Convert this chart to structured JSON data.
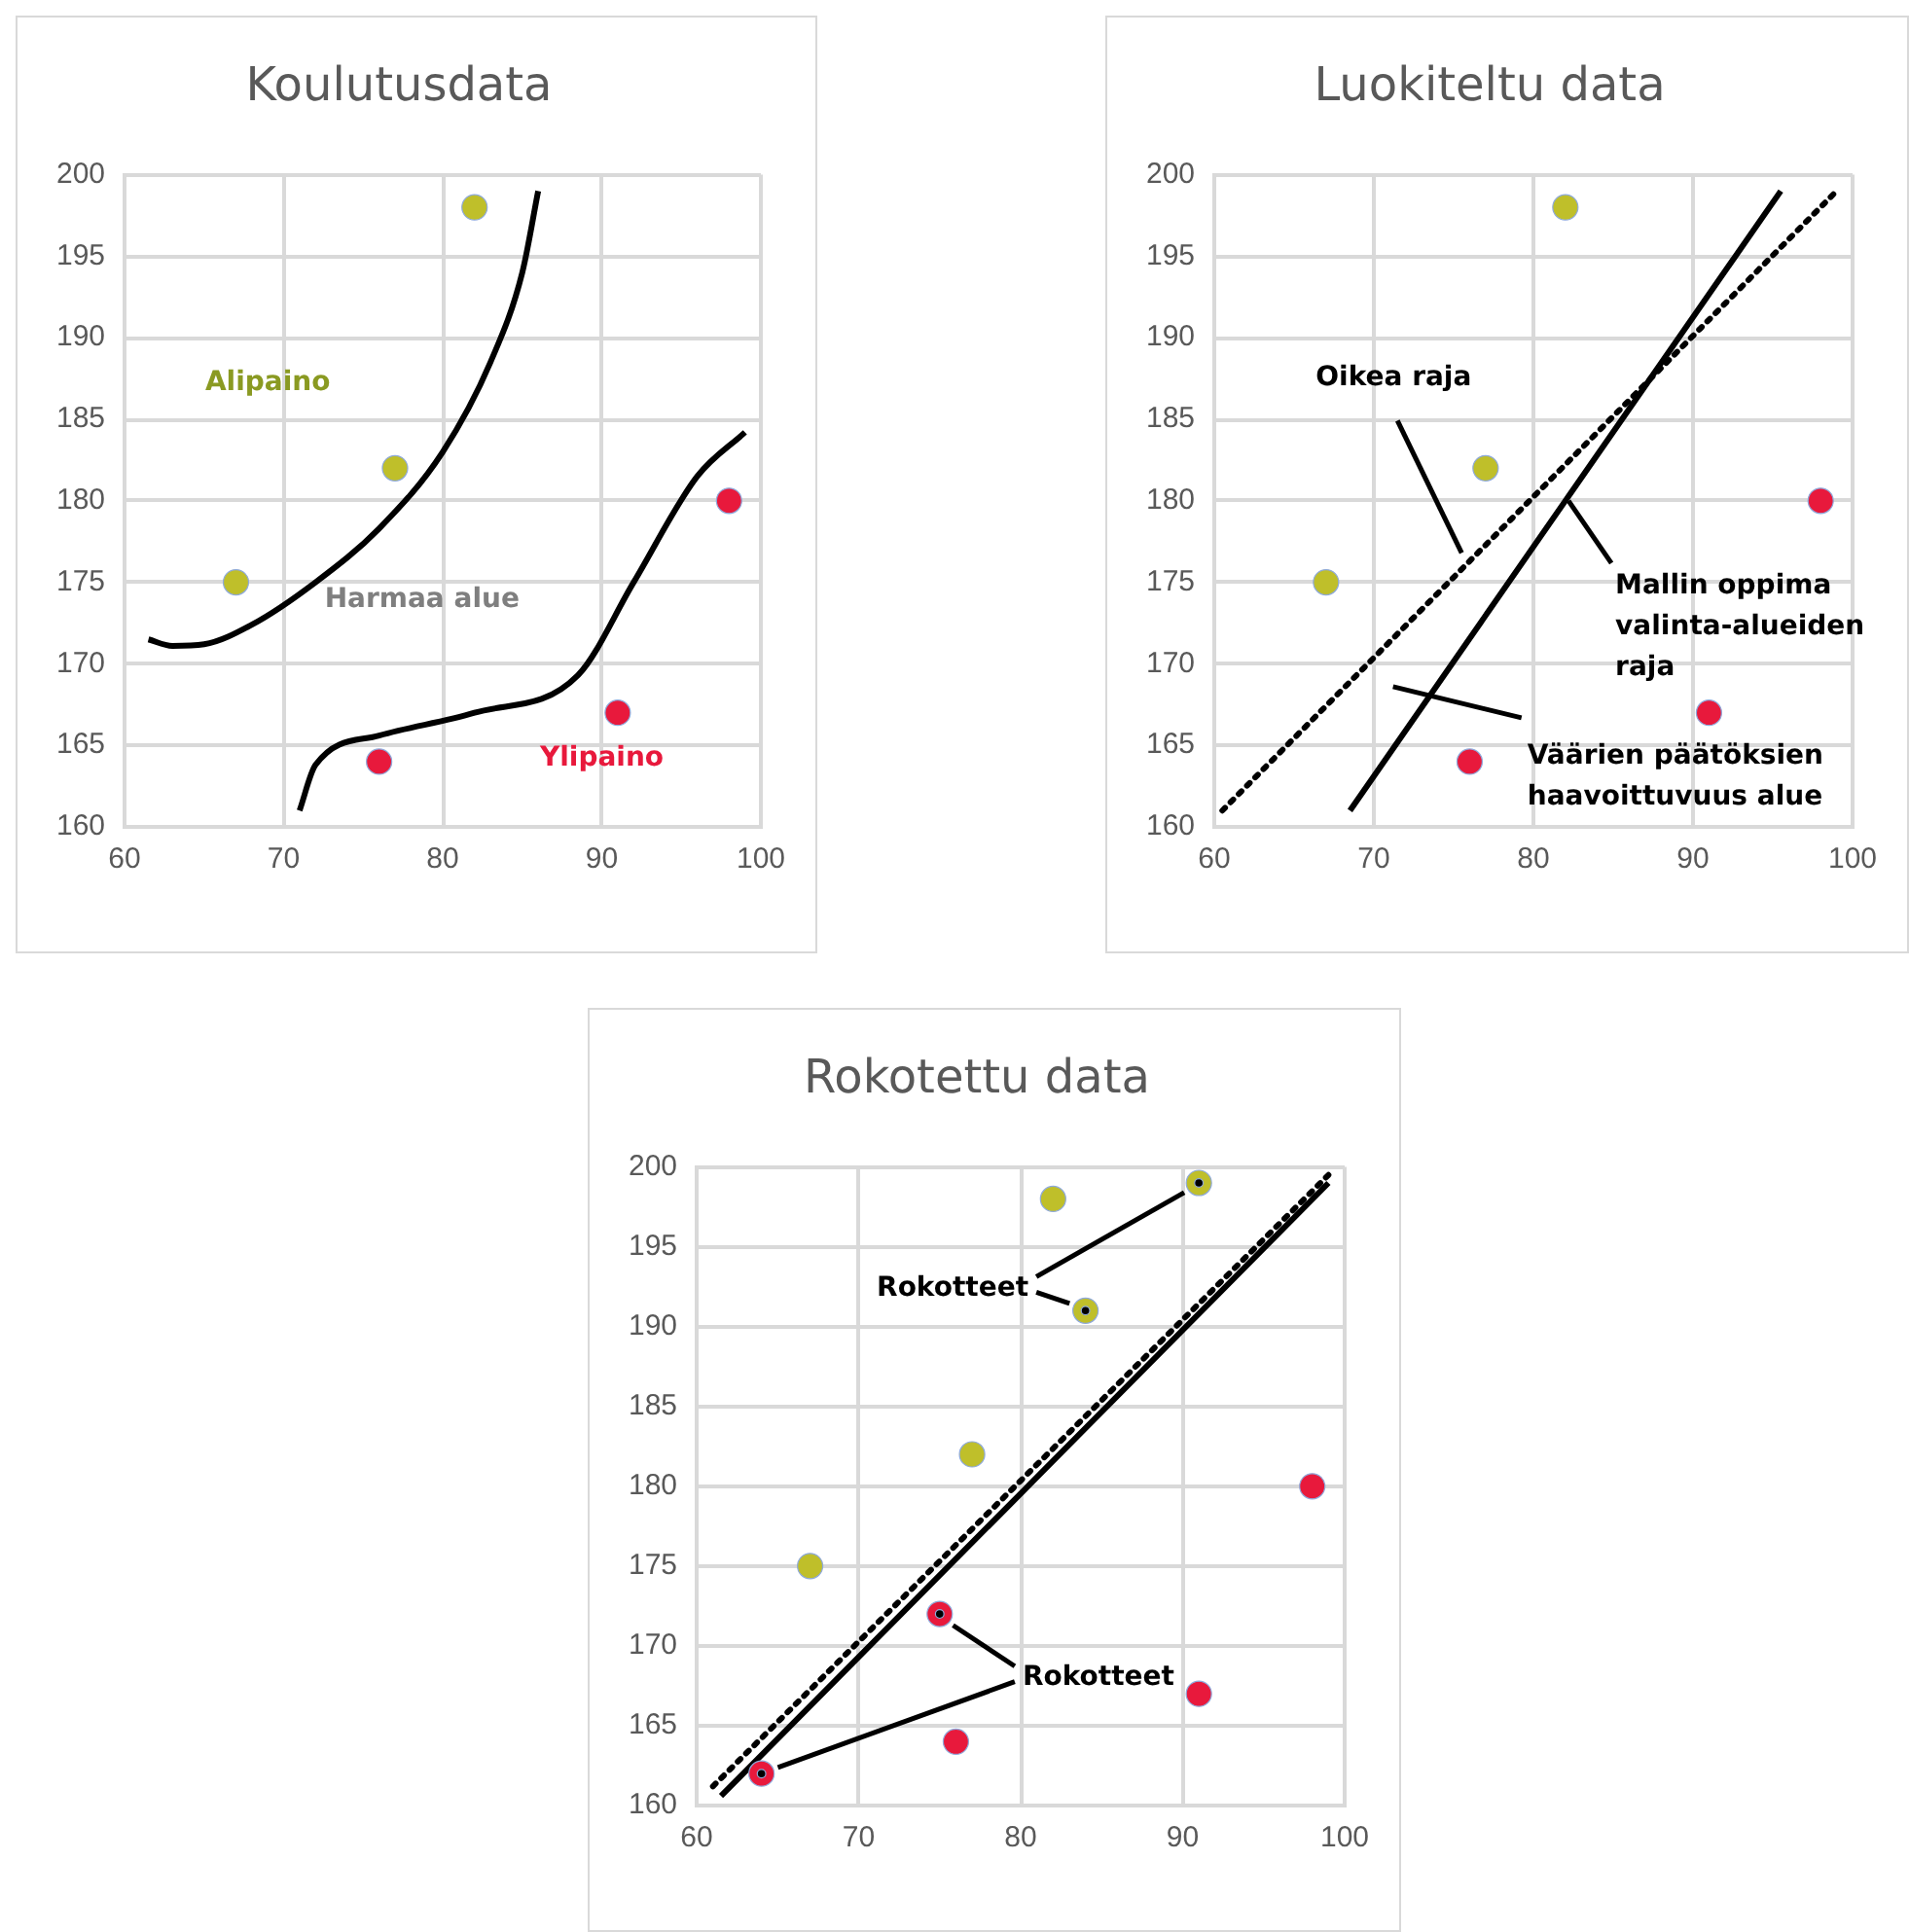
{
  "chart_data": [
    {
      "type": "scatter",
      "title": "Koulutusdata",
      "xlim": [
        60,
        100
      ],
      "xticks": [
        60,
        70,
        80,
        90,
        100
      ],
      "ylim": [
        160,
        200
      ],
      "yticks": [
        160,
        165,
        170,
        175,
        180,
        185,
        190,
        195,
        200
      ],
      "grid": true,
      "legend": false,
      "marker": "circle",
      "series": [
        {
          "color": "#bfbf2a",
          "x": [
            67,
            77,
            82
          ],
          "values": [
            175,
            182,
            198
          ]
        },
        {
          "color": "#e8193c",
          "x": [
            76,
            91,
            98
          ],
          "values": [
            164,
            167,
            180
          ]
        },
        {
          "type": "line",
          "marker": "none",
          "color": "#000000",
          "x": [
            61.5,
            63,
            65,
            68,
            72,
            76,
            80,
            83,
            85,
            86
          ],
          "values": [
            171.5,
            171.1,
            171.2,
            172.4,
            175,
            178.3,
            183,
            188.5,
            194,
            199
          ]
        },
        {
          "type": "line",
          "marker": "none",
          "color": "#000000",
          "x": [
            71,
            72,
            76,
            82,
            88.5,
            92,
            96,
            99
          ],
          "values": [
            161,
            163.8,
            165.6,
            167,
            169.3,
            175,
            181.5,
            184.2
          ]
        }
      ],
      "annotations": [
        "Alipaino",
        "Harmaa alue",
        "Ylipaino"
      ]
    },
    {
      "type": "scatter",
      "title": "Luokiteltu data",
      "xlim": [
        60,
        100
      ],
      "xticks": [
        60,
        70,
        80,
        90,
        100
      ],
      "ylim": [
        160,
        200
      ],
      "yticks": [
        160,
        165,
        170,
        175,
        180,
        185,
        190,
        195,
        200
      ],
      "grid": true,
      "legend": false,
      "marker": "circle",
      "series": [
        {
          "color": "#bfbf2a",
          "x": [
            67,
            77,
            82
          ],
          "values": [
            175,
            182,
            198
          ]
        },
        {
          "color": "#e8193c",
          "x": [
            76,
            91,
            98
          ],
          "values": [
            164,
            167,
            180
          ]
        },
        {
          "type": "line",
          "marker": "none",
          "color": "#000000",
          "line_style": "dotted",
          "x": [
            60.5,
            99
          ],
          "values": [
            161,
            199
          ]
        },
        {
          "type": "line",
          "marker": "none",
          "color": "#000000",
          "x": [
            68.5,
            95.5
          ],
          "values": [
            161,
            199
          ]
        }
      ],
      "annotations": [
        {
          "text": "Oikea raja",
          "x": 75.5,
          "y": 176.8
        },
        {
          "text": "Mallin oppima valinta-alueiden raja",
          "x": 82.2,
          "y": 180
        },
        "Väärien päätöksien haavoittuvuus alue"
      ]
    },
    {
      "type": "scatter",
      "title": "Rokotettu data",
      "xlim": [
        60,
        100
      ],
      "xticks": [
        60,
        70,
        80,
        90,
        100
      ],
      "ylim": [
        160,
        200
      ],
      "yticks": [
        160,
        165,
        170,
        175,
        180,
        185,
        190,
        195,
        200
      ],
      "grid": true,
      "legend": false,
      "marker": "circle",
      "series": [
        {
          "color": "#bfbf2a",
          "x": [
            67,
            77,
            82,
            84,
            91
          ],
          "values": [
            175,
            182,
            198,
            191,
            199
          ]
        },
        {
          "color": "#e8193c",
          "x": [
            64,
            75,
            76,
            91,
            98
          ],
          "values": [
            162,
            172,
            164,
            167,
            180
          ]
        },
        {
          "type": "line",
          "marker": "none",
          "color": "#000000",
          "line_style": "dotted",
          "x": [
            61,
            99
          ],
          "values": [
            161.2,
            199.5
          ]
        },
        {
          "type": "line",
          "marker": "none",
          "color": "#000000",
          "x": [
            61.5,
            99
          ],
          "values": [
            160.6,
            199
          ]
        },
        {
          "color": "#000000",
          "x": [
            84,
            91,
            64,
            75
          ],
          "values": [
            191,
            199,
            162,
            172
          ]
        }
      ],
      "annotations": [
        {
          "text": "Rokotteet",
          "x": 84,
          "y": 191
        },
        {
          "text": "Rokotteet",
          "x": 75,
          "y": 172
        }
      ]
    }
  ]
}
